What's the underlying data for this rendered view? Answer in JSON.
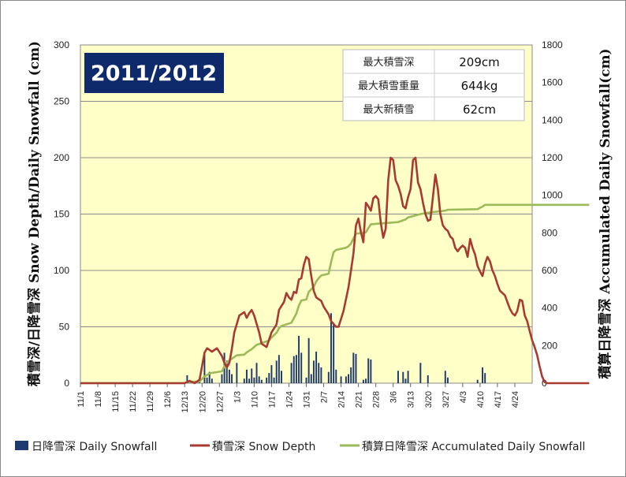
{
  "chart_data": {
    "type": "bar+line",
    "title": "2011/2012",
    "ylabel_left": "積雪深/日降雪深 Snow Depth/Daily Snowfall (cm)",
    "ylabel_right": "積算日降雪深 Accumulated Daily Snowfall(cm)",
    "ylim_left": [
      0,
      300
    ],
    "ylim_right": [
      0,
      1800
    ],
    "yticks_left": [
      0,
      50,
      100,
      150,
      200,
      250,
      300
    ],
    "yticks_right": [
      0,
      200,
      400,
      600,
      800,
      1000,
      1200,
      1400,
      1600,
      1800
    ],
    "x_start": "11/1",
    "x_days": 182,
    "x_tick_labels": [
      "11/1",
      "11/8",
      "11/15",
      "11/22",
      "11/29",
      "12/6",
      "12/13",
      "12/20",
      "12/27",
      "1/3",
      "1/10",
      "1/17",
      "1/24",
      "1/31",
      "2/7",
      "2/14",
      "2/21",
      "2/28",
      "3/6",
      "3/13",
      "3/20",
      "3/27",
      "4/3",
      "4/10",
      "4/17",
      "4/24"
    ],
    "grid": true,
    "legend_position": "bottom",
    "info_table": [
      {
        "label": "最大積雪深",
        "value": "209cm"
      },
      {
        "label": "最大積雪重量",
        "value": "644kg"
      },
      {
        "label": "最大新積雪",
        "value": "62cm"
      }
    ],
    "colors": {
      "plot_bg": "#ffffc8",
      "daily": "#1f3a6e",
      "depth": "#a83a32",
      "accum": "#9bbb59",
      "title_bg": "#0e2a6b"
    },
    "series": [
      {
        "name": "日降雪深 Daily Snowfall",
        "type": "bar",
        "axis": "left",
        "points": [
          [
            43,
            7
          ],
          [
            48,
            2
          ],
          [
            50,
            27
          ],
          [
            51,
            5
          ],
          [
            52,
            10
          ],
          [
            53,
            4
          ],
          [
            57,
            8
          ],
          [
            58,
            27
          ],
          [
            59,
            20
          ],
          [
            60,
            12
          ],
          [
            61,
            8
          ],
          [
            63,
            18
          ],
          [
            66,
            4
          ],
          [
            67,
            12
          ],
          [
            68,
            4
          ],
          [
            69,
            13
          ],
          [
            70,
            5
          ],
          [
            71,
            18
          ],
          [
            72,
            6
          ],
          [
            73,
            3
          ],
          [
            75,
            5
          ],
          [
            76,
            9
          ],
          [
            77,
            16
          ],
          [
            78,
            5
          ],
          [
            79,
            20
          ],
          [
            80,
            25
          ],
          [
            81,
            11
          ],
          [
            85,
            18
          ],
          [
            86,
            24
          ],
          [
            87,
            25
          ],
          [
            88,
            42
          ],
          [
            89,
            27
          ],
          [
            91,
            5
          ],
          [
            92,
            40
          ],
          [
            93,
            8
          ],
          [
            94,
            20
          ],
          [
            95,
            28
          ],
          [
            96,
            18
          ],
          [
            97,
            14
          ],
          [
            100,
            10
          ],
          [
            101,
            62
          ],
          [
            102,
            52
          ],
          [
            103,
            12
          ],
          [
            105,
            6
          ],
          [
            107,
            6
          ],
          [
            108,
            8
          ],
          [
            109,
            14
          ],
          [
            110,
            27
          ],
          [
            111,
            26
          ],
          [
            114,
            3
          ],
          [
            115,
            4
          ],
          [
            116,
            22
          ],
          [
            117,
            21
          ],
          [
            128,
            11
          ],
          [
            130,
            10
          ],
          [
            131,
            4
          ],
          [
            132,
            11
          ],
          [
            137,
            18
          ],
          [
            140,
            7
          ],
          [
            147,
            11
          ],
          [
            148,
            5
          ],
          [
            160,
            3
          ],
          [
            162,
            14
          ],
          [
            163,
            9
          ]
        ]
      },
      {
        "name": "積雪深 Snow Depth",
        "type": "line",
        "axis": "left",
        "points": [
          [
            0,
            0
          ],
          [
            42,
            0
          ],
          [
            44,
            2
          ],
          [
            46,
            0
          ],
          [
            48,
            3
          ],
          [
            50,
            27
          ],
          [
            51,
            31
          ],
          [
            53,
            28
          ],
          [
            55,
            31
          ],
          [
            57,
            24
          ],
          [
            58,
            18
          ],
          [
            59,
            14
          ],
          [
            60,
            18
          ],
          [
            61,
            30
          ],
          [
            62,
            45
          ],
          [
            64,
            60
          ],
          [
            66,
            63
          ],
          [
            67,
            58
          ],
          [
            68,
            62
          ],
          [
            69,
            65
          ],
          [
            70,
            60
          ],
          [
            72,
            45
          ],
          [
            73,
            35
          ],
          [
            75,
            32
          ],
          [
            77,
            45
          ],
          [
            79,
            52
          ],
          [
            80,
            65
          ],
          [
            82,
            72
          ],
          [
            83,
            80
          ],
          [
            84,
            76
          ],
          [
            85,
            74
          ],
          [
            86,
            81
          ],
          [
            87,
            80
          ],
          [
            88,
            92
          ],
          [
            89,
            93
          ],
          [
            90,
            105
          ],
          [
            91,
            112
          ],
          [
            92,
            110
          ],
          [
            93,
            95
          ],
          [
            94,
            82
          ],
          [
            95,
            76
          ],
          [
            97,
            73
          ],
          [
            98,
            68
          ],
          [
            100,
            61
          ],
          [
            101,
            55
          ],
          [
            103,
            50
          ],
          [
            104,
            50
          ],
          [
            106,
            64
          ],
          [
            108,
            85
          ],
          [
            109,
            100
          ],
          [
            110,
            115
          ],
          [
            111,
            140
          ],
          [
            112,
            146
          ],
          [
            113,
            134
          ],
          [
            114,
            125
          ],
          [
            115,
            160
          ],
          [
            116,
            157
          ],
          [
            117,
            153
          ],
          [
            118,
            164
          ],
          [
            119,
            166
          ],
          [
            120,
            163
          ],
          [
            121,
            142
          ],
          [
            122,
            129
          ],
          [
            123,
            137
          ],
          [
            124,
            180
          ],
          [
            125,
            200
          ],
          [
            126,
            198
          ],
          [
            127,
            180
          ],
          [
            128,
            175
          ],
          [
            129,
            168
          ],
          [
            130,
            157
          ],
          [
            131,
            155
          ],
          [
            132,
            165
          ],
          [
            133,
            172
          ],
          [
            134,
            198
          ],
          [
            135,
            200
          ],
          [
            136,
            178
          ],
          [
            137,
            172
          ],
          [
            138,
            160
          ],
          [
            139,
            150
          ],
          [
            140,
            144
          ],
          [
            141,
            145
          ],
          [
            142,
            165
          ],
          [
            143,
            185
          ],
          [
            144,
            172
          ],
          [
            145,
            150
          ],
          [
            146,
            140
          ],
          [
            147,
            137
          ],
          [
            148,
            135
          ],
          [
            149,
            130
          ],
          [
            150,
            128
          ],
          [
            151,
            120
          ],
          [
            152,
            117
          ],
          [
            153,
            120
          ],
          [
            154,
            122
          ],
          [
            155,
            120
          ],
          [
            156,
            112
          ],
          [
            157,
            128
          ],
          [
            158,
            120
          ],
          [
            159,
            114
          ],
          [
            160,
            104
          ],
          [
            161,
            99
          ],
          [
            162,
            95
          ],
          [
            163,
            106
          ],
          [
            164,
            112
          ],
          [
            165,
            108
          ],
          [
            166,
            100
          ],
          [
            167,
            95
          ],
          [
            168,
            88
          ],
          [
            169,
            82
          ],
          [
            170,
            80
          ],
          [
            171,
            78
          ],
          [
            172,
            72
          ],
          [
            173,
            66
          ],
          [
            174,
            62
          ],
          [
            175,
            60
          ],
          [
            176,
            64
          ],
          [
            177,
            74
          ],
          [
            178,
            73
          ],
          [
            179,
            60
          ],
          [
            180,
            55
          ],
          [
            181,
            46
          ],
          [
            182,
            38
          ],
          [
            183,
            32
          ],
          [
            184,
            25
          ],
          [
            185,
            15
          ],
          [
            186,
            6
          ],
          [
            187,
            1
          ],
          [
            188,
            0
          ],
          [
            205,
            0
          ]
        ]
      },
      {
        "name": "積算日降雪深 Accumulated Daily Snowfall",
        "type": "line",
        "axis": "right",
        "points": [
          [
            0,
            0
          ],
          [
            42,
            0
          ],
          [
            43,
            7
          ],
          [
            48,
            9
          ],
          [
            50,
            36
          ],
          [
            52,
            51
          ],
          [
            53,
            55
          ],
          [
            57,
            63
          ],
          [
            58,
            90
          ],
          [
            59,
            110
          ],
          [
            61,
            130
          ],
          [
            63,
            148
          ],
          [
            66,
            152
          ],
          [
            67,
            164
          ],
          [
            69,
            181
          ],
          [
            71,
            204
          ],
          [
            73,
            213
          ],
          [
            76,
            227
          ],
          [
            77,
            243
          ],
          [
            79,
            268
          ],
          [
            80,
            293
          ],
          [
            81,
            304
          ],
          [
            85,
            322
          ],
          [
            86,
            346
          ],
          [
            87,
            371
          ],
          [
            88,
            413
          ],
          [
            89,
            440
          ],
          [
            91,
            445
          ],
          [
            92,
            485
          ],
          [
            94,
            513
          ],
          [
            95,
            541
          ],
          [
            96,
            559
          ],
          [
            97,
            573
          ],
          [
            100,
            583
          ],
          [
            101,
            645
          ],
          [
            102,
            697
          ],
          [
            103,
            709
          ],
          [
            105,
            715
          ],
          [
            107,
            721
          ],
          [
            108,
            729
          ],
          [
            109,
            743
          ],
          [
            110,
            770
          ],
          [
            111,
            796
          ],
          [
            114,
            799
          ],
          [
            115,
            803
          ],
          [
            116,
            825
          ],
          [
            117,
            846
          ],
          [
            128,
            857
          ],
          [
            130,
            867
          ],
          [
            131,
            871
          ],
          [
            132,
            882
          ],
          [
            137,
            900
          ],
          [
            140,
            907
          ],
          [
            147,
            918
          ],
          [
            148,
            923
          ],
          [
            160,
            926
          ],
          [
            162,
            940
          ],
          [
            163,
            949
          ],
          [
            205,
            949
          ]
        ]
      }
    ]
  }
}
